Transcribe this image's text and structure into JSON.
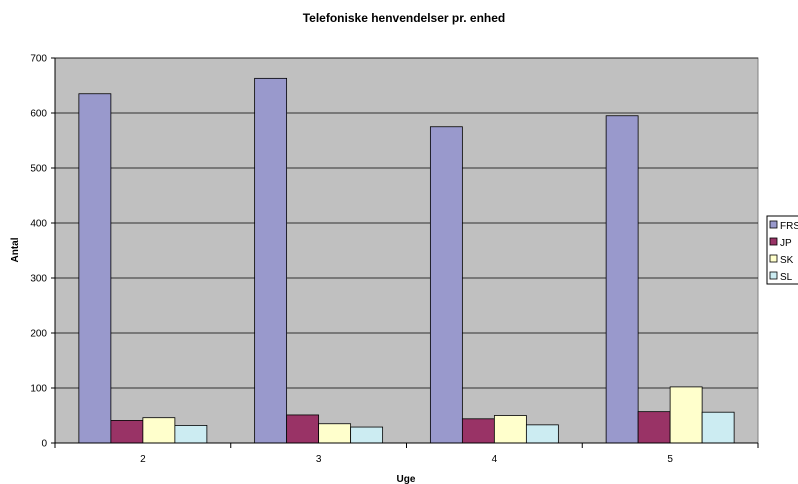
{
  "chart_data": {
    "type": "bar",
    "title": "Telefoniske henvendelser pr. enhed",
    "xlabel": "Uge",
    "ylabel": "Antal",
    "categories": [
      "2",
      "3",
      "4",
      "5"
    ],
    "ylim": [
      0,
      700
    ],
    "yticks": [
      0,
      100,
      200,
      300,
      400,
      500,
      600,
      700
    ],
    "grid": true,
    "plot_background": "#c0c0c0",
    "legend_position": "right",
    "series": [
      {
        "name": "FRS",
        "color": "#9999cc",
        "values": [
          635,
          663,
          575,
          595
        ]
      },
      {
        "name": "JP",
        "color": "#993366",
        "values": [
          41,
          51,
          44,
          57
        ]
      },
      {
        "name": "SK",
        "color": "#ffffcc",
        "values": [
          46,
          35,
          50,
          102
        ]
      },
      {
        "name": "SL",
        "color": "#ccecf2",
        "values": [
          32,
          29,
          33,
          56
        ]
      }
    ]
  }
}
